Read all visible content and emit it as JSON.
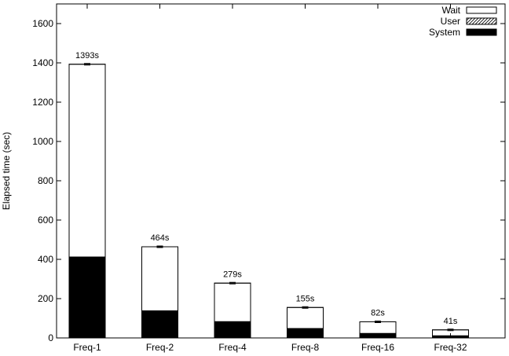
{
  "chart_data": {
    "type": "bar",
    "stacked": true,
    "categories": [
      "Freq-1",
      "Freq-2",
      "Freq-4",
      "Freq-8",
      "Freq-16",
      "Freq-32"
    ],
    "series": [
      {
        "name": "System",
        "values": [
          410,
          137,
          82,
          47,
          22,
          10
        ],
        "color": "#000000",
        "pattern": "solid"
      },
      {
        "name": "User",
        "values": [
          2,
          1,
          1,
          1,
          1,
          1
        ],
        "color": "#000000",
        "pattern": "hatch"
      },
      {
        "name": "Wait",
        "values": [
          981,
          326,
          196,
          107,
          59,
          30
        ],
        "color": "#ffffff",
        "pattern": "outline"
      }
    ],
    "totals": [
      1393,
      464,
      279,
      155,
      82,
      41
    ],
    "data_labels": [
      "1393s",
      "464s",
      "279s",
      "155s",
      "82s",
      "41s"
    ],
    "ylabel": "Elapsed time (sec)",
    "xlabel": "",
    "title": "",
    "ylim": [
      0,
      1700
    ],
    "yticks": [
      0,
      200,
      400,
      600,
      800,
      1000,
      1200,
      1400,
      1600
    ],
    "legend_position": "top-right",
    "legend_order": [
      "Wait",
      "User",
      "System"
    ],
    "grid": false
  }
}
